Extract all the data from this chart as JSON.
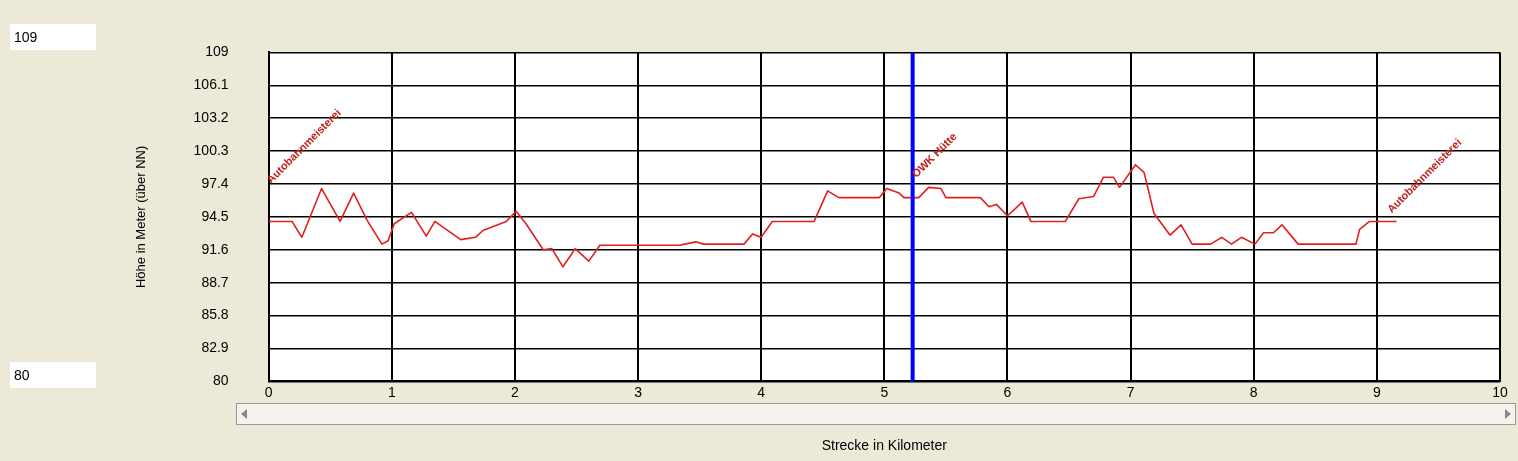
{
  "chart_data": {
    "type": "line",
    "xlabel": "Strecke in Kilometer",
    "ylabel": "Höhe in Meter (über NN)",
    "xlim": [
      0,
      10
    ],
    "xticks": [
      0,
      1,
      2,
      3,
      4,
      5,
      6,
      7,
      8,
      9,
      10
    ],
    "ylim": [
      80,
      109
    ],
    "yticks": [
      80,
      82.9,
      85.8,
      88.7,
      91.6,
      94.5,
      97.4,
      100.3,
      103.2,
      106.1,
      109
    ],
    "grid": true,
    "legend": false,
    "marker": "none",
    "line_style": "solid",
    "series": [
      {
        "color": "#e02020",
        "x": [
          0,
          0.19,
          0.27,
          0.43,
          0.58,
          0.69,
          0.8,
          0.92,
          0.97,
          1.02,
          1.16,
          1.28,
          1.35,
          1.56,
          1.68,
          1.74,
          1.93,
          2.01,
          2.09,
          2.23,
          2.3,
          2.39,
          2.49,
          2.6,
          2.69,
          3.34,
          3.38,
          3.47,
          3.53,
          3.86,
          3.93,
          4.0,
          4.09,
          4.43,
          4.54,
          4.63,
          4.96,
          5.02,
          5.12,
          5.16,
          5.28,
          5.36,
          5.46,
          5.5,
          5.78,
          5.85,
          5.91,
          6.0,
          6.12,
          6.19,
          6.47,
          6.58,
          6.7,
          6.78,
          6.86,
          6.91,
          7.04,
          7.11,
          7.19,
          7.32,
          7.41,
          7.5,
          7.65,
          7.74,
          7.82,
          7.9,
          8.01,
          8.08,
          8.16,
          8.23,
          8.36,
          8.83,
          8.86,
          8.94,
          9.16
        ],
        "values": [
          94.1,
          94.1,
          92.7,
          97.0,
          94.1,
          96.6,
          94.2,
          92.1,
          92.4,
          93.9,
          94.9,
          92.8,
          94.1,
          92.5,
          92.7,
          93.3,
          94.1,
          95.0,
          93.9,
          91.6,
          91.7,
          90.1,
          91.7,
          90.6,
          92.0,
          92.0,
          92.1,
          92.3,
          92.1,
          92.1,
          93.0,
          92.7,
          94.1,
          94.1,
          96.8,
          96.2,
          96.2,
          97.0,
          96.6,
          96.2,
          96.2,
          97.1,
          97.0,
          96.2,
          96.2,
          95.4,
          95.6,
          94.6,
          95.8,
          94.1,
          94.1,
          96.1,
          96.3,
          98.0,
          98.0,
          97.1,
          99.1,
          98.4,
          94.8,
          92.9,
          93.8,
          92.1,
          92.1,
          92.7,
          92.1,
          92.7,
          92.1,
          93.1,
          93.1,
          93.8,
          92.1,
          92.1,
          93.4,
          94.1,
          94.1
        ]
      }
    ],
    "ref_lines": [
      {
        "axis": "x",
        "value": 5.23,
        "color": "#0000ff"
      }
    ],
    "annotations": [
      "Autobahnmeisterei",
      {
        "text": "OWK Hütte",
        "x": 5.26,
        "y": 97.9
      },
      "Autobahnmeisterei",
      "109",
      "80"
    ]
  }
}
